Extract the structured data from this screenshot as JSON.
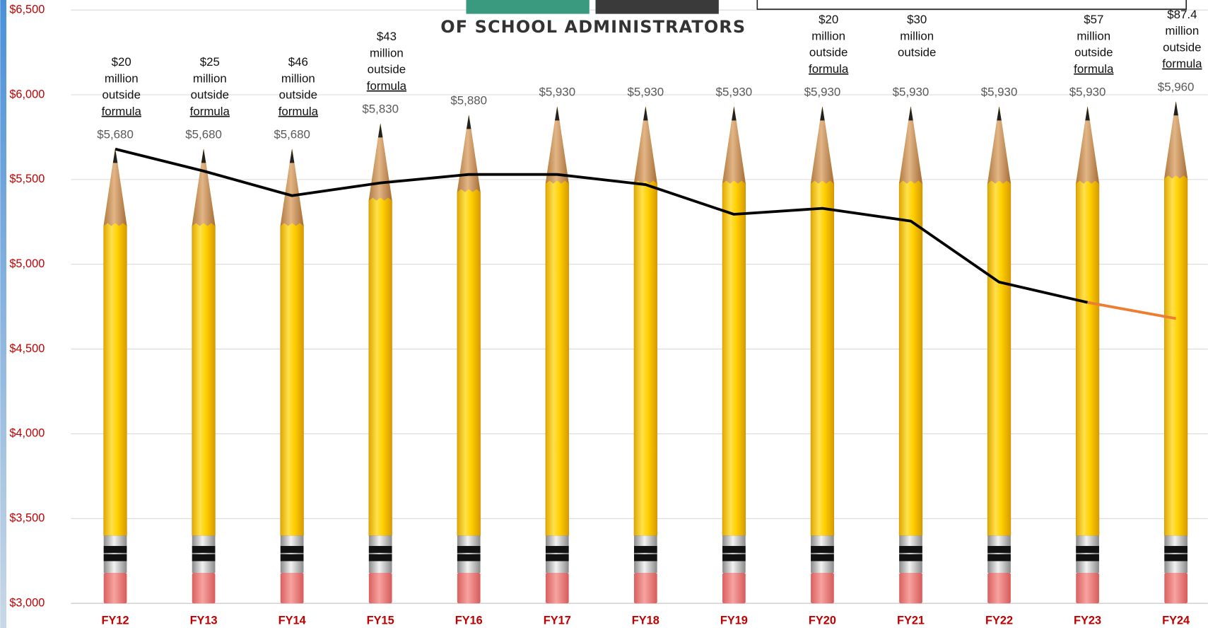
{
  "header": {
    "org": "OF SCHOOL ADMINISTRATORS"
  },
  "chart_data": {
    "type": "pencil",
    "categories": [
      "FY12",
      "FY13",
      "FY14",
      "FY15",
      "FY16",
      "FY17",
      "FY18",
      "FY19",
      "FY20",
      "FY21",
      "FY22",
      "FY23",
      "FY24"
    ],
    "values": [
      5680,
      5680,
      5680,
      5830,
      5880,
      5930,
      5930,
      5930,
      5930,
      5930,
      5930,
      5930,
      5960
    ],
    "value_labels": [
      "$5,680",
      "$5,680",
      "$5,680",
      "$5,830",
      "$5,880",
      "$5,930",
      "$5,930",
      "$5,930",
      "$5,930",
      "$5,930",
      "$5,930",
      "$5,930",
      "$5,960"
    ],
    "annotations": [
      [
        "$20",
        "million",
        "outside",
        "formula"
      ],
      [
        "$25",
        "million",
        "outside",
        "formula"
      ],
      [
        "$46",
        "million",
        "outside",
        "formula"
      ],
      [
        "$43",
        "million",
        "outside",
        "formula"
      ],
      null,
      null,
      null,
      null,
      [
        "$20",
        "million",
        "outside",
        "formula"
      ],
      [
        "$30",
        "million",
        "outside"
      ],
      null,
      [
        "$57",
        "million",
        "outside",
        "formula"
      ],
      [
        "$87.4",
        "million",
        "outside",
        "formula"
      ]
    ],
    "series": [
      {
        "color": "#000000",
        "values": [
          5680,
          5550,
          5405,
          5480,
          5530,
          5530,
          5470,
          5295,
          5330,
          5255,
          4895,
          4775,
          null
        ]
      },
      {
        "color": "#ed7d31",
        "values": [
          null,
          null,
          null,
          null,
          null,
          null,
          null,
          null,
          null,
          null,
          null,
          4775,
          4680
        ]
      }
    ],
    "ylim": [
      3000,
      6500
    ],
    "yticks": [
      {
        "value": 3000,
        "label": "$3,000"
      },
      {
        "value": 3500,
        "label": "$3,500"
      },
      {
        "value": 4000,
        "label": "$4,000"
      },
      {
        "value": 4500,
        "label": "$4,500"
      },
      {
        "value": 5000,
        "label": "$5,000"
      },
      {
        "value": 5500,
        "label": "$5,500"
      },
      {
        "value": 6000,
        "label": "$6,000"
      },
      {
        "value": 6500,
        "label": "$6,500"
      }
    ],
    "grid": true
  }
}
